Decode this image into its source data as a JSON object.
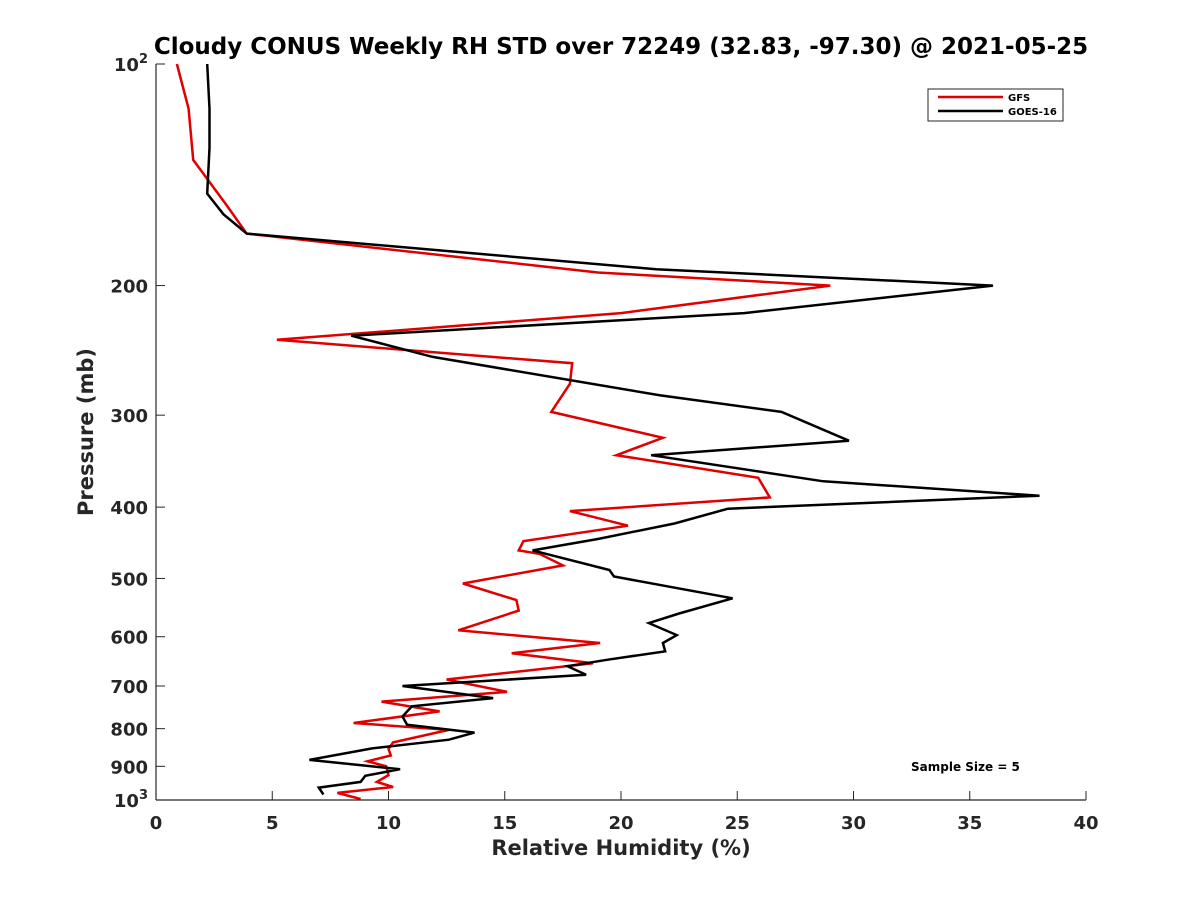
{
  "chart_data": {
    "type": "line",
    "title": "Cloudy CONUS Weekly RH STD over 72249 (32.83, -97.30) @ 2021-05-25",
    "xlabel": "Relative Humidity (%)",
    "ylabel": "Pressure (mb)",
    "xlim": [
      0,
      40
    ],
    "ylim": [
      100,
      1000
    ],
    "yscale": "log",
    "y_reversed": true,
    "grid": false,
    "legend_position": "top-right",
    "x_ticks": [
      0,
      5,
      10,
      15,
      20,
      25,
      30,
      35,
      40
    ],
    "x_tick_labels": [
      "0",
      "5",
      "10",
      "15",
      "20",
      "25",
      "30",
      "35",
      "40"
    ],
    "y_ticks": [
      100,
      200,
      300,
      400,
      500,
      600,
      700,
      800,
      900,
      1000
    ],
    "y_tick_labels": [
      {
        "base": "10",
        "sup": "2"
      },
      {
        "base": "200"
      },
      {
        "base": "300"
      },
      {
        "base": "400"
      },
      {
        "base": "500"
      },
      {
        "base": "600"
      },
      {
        "base": "700"
      },
      {
        "base": "800"
      },
      {
        "base": "900"
      },
      {
        "base": "10",
        "sup": "3"
      }
    ],
    "annotation": "Sample Size = 5",
    "series": [
      {
        "name": "GFS",
        "color": "#e00000",
        "points": [
          [
            0.9,
            100
          ],
          [
            1.4,
            115
          ],
          [
            1.6,
            135
          ],
          [
            3.0,
            155
          ],
          [
            3.9,
            170
          ],
          [
            19.0,
            192
          ],
          [
            29.0,
            200
          ],
          [
            20.0,
            218
          ],
          [
            5.2,
            237
          ],
          [
            17.9,
            255
          ],
          [
            17.8,
            272
          ],
          [
            17.0,
            297
          ],
          [
            21.8,
            322
          ],
          [
            19.8,
            340
          ],
          [
            25.9,
            365
          ],
          [
            26.4,
            388
          ],
          [
            17.8,
            405
          ],
          [
            20.3,
            424
          ],
          [
            15.8,
            445
          ],
          [
            15.6,
            458
          ],
          [
            16.5,
            463
          ],
          [
            17.5,
            480
          ],
          [
            13.2,
            508
          ],
          [
            15.5,
            535
          ],
          [
            15.6,
            553
          ],
          [
            13.0,
            588
          ],
          [
            19.1,
            612
          ],
          [
            15.3,
            632
          ],
          [
            18.8,
            652
          ],
          [
            12.5,
            686
          ],
          [
            15.1,
            713
          ],
          [
            9.7,
            735
          ],
          [
            12.2,
            758
          ],
          [
            8.5,
            786
          ],
          [
            12.6,
            803
          ],
          [
            10.2,
            835
          ],
          [
            10.0,
            852
          ],
          [
            10.1,
            870
          ],
          [
            9.1,
            886
          ],
          [
            9.9,
            900
          ],
          [
            10.0,
            925
          ],
          [
            9.5,
            945
          ],
          [
            10.2,
            960
          ],
          [
            7.8,
            978
          ],
          [
            8.8,
            997
          ]
        ]
      },
      {
        "name": "GOES-16",
        "color": "#000000",
        "points": [
          [
            2.2,
            100
          ],
          [
            2.3,
            115
          ],
          [
            2.3,
            130
          ],
          [
            2.2,
            150
          ],
          [
            2.9,
            160
          ],
          [
            3.9,
            170
          ],
          [
            21.5,
            190
          ],
          [
            36.0,
            200
          ],
          [
            25.3,
            218
          ],
          [
            8.4,
            234
          ],
          [
            11.9,
            250
          ],
          [
            21.7,
            282
          ],
          [
            26.9,
            297
          ],
          [
            29.8,
            325
          ],
          [
            21.3,
            340
          ],
          [
            28.7,
            369
          ],
          [
            38.0,
            386
          ],
          [
            24.6,
            402
          ],
          [
            22.3,
            421
          ],
          [
            19.0,
            442
          ],
          [
            16.2,
            458
          ],
          [
            19.5,
            487
          ],
          [
            19.7,
            497
          ],
          [
            24.8,
            532
          ],
          [
            22.5,
            558
          ],
          [
            21.2,
            575
          ],
          [
            22.4,
            597
          ],
          [
            21.8,
            612
          ],
          [
            21.9,
            628
          ],
          [
            19.4,
            645
          ],
          [
            17.7,
            658
          ],
          [
            18.5,
            676
          ],
          [
            10.6,
            700
          ],
          [
            14.5,
            727
          ],
          [
            11.0,
            746
          ],
          [
            10.6,
            770
          ],
          [
            10.8,
            790
          ],
          [
            13.7,
            810
          ],
          [
            12.6,
            828
          ],
          [
            9.3,
            851
          ],
          [
            6.6,
            882
          ],
          [
            10.5,
            908
          ],
          [
            9.0,
            927
          ],
          [
            8.8,
            945
          ],
          [
            7.0,
            962
          ],
          [
            7.2,
            983
          ]
        ]
      }
    ]
  }
}
